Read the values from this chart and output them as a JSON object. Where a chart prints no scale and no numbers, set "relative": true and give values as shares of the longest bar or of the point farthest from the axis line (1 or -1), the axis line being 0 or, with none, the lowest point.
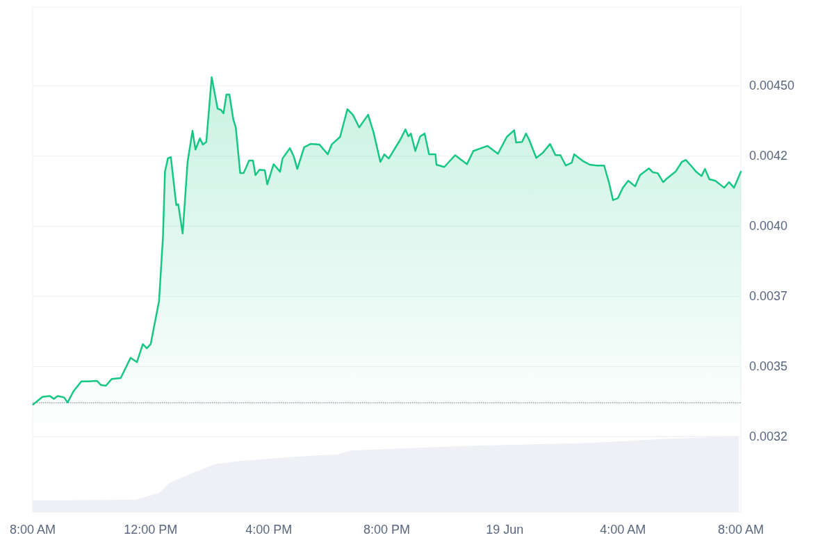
{
  "chart_data": [
    {
      "type": "area",
      "xlim": [
        "--06-18T08:00",
        "--06-19T08:00"
      ],
      "ylim": [
        0.00325,
        0.00478
      ],
      "tick_labels": "y",
      "grid": "y",
      "yticks": [
        {
          "value": 0.00325,
          "label": "0.0032"
        },
        {
          "value": 0.0035,
          "label": "0.0035"
        },
        {
          "value": 0.00375,
          "label": "0.0037"
        },
        {
          "value": 0.004,
          "label": "0.0040"
        },
        {
          "value": 0.00425,
          "label": "0.0042"
        },
        {
          "value": 0.0045,
          "label": "0.00450"
        }
      ],
      "ref_lines": [
        {
          "axis": "y",
          "value": 0.00337,
          "label": null,
          "color": "#9aa0a8",
          "line_style": "dotted"
        }
      ],
      "series": [
        {
          "color": "#16c784",
          "x": [
            "--06-18T08:01",
            "--06-18T08:20",
            "--06-18T08:35",
            "--06-18T08:43",
            "--06-18T08:51",
            "--06-18T09:04",
            "--06-18T09:11",
            "--06-18T09:23",
            "--06-18T09:39",
            "--06-18T09:53",
            "--06-18T10:11",
            "--06-18T10:19",
            "--06-18T10:29",
            "--06-18T10:41",
            "--06-18T10:59",
            "--06-18T11:19",
            "--06-18T11:32",
            "--06-18T11:44",
            "--06-18T11:52",
            "--06-18T12:00",
            "--06-18T12:17",
            "--06-18T12:25",
            "--06-18T12:29",
            "--06-18T12:35",
            "--06-18T12:41",
            "--06-18T12:52",
            "--06-18T12:56",
            "--06-18T13:05",
            "--06-18T13:15",
            "--06-18T13:25",
            "--06-18T13:31",
            "--06-18T13:40",
            "--06-18T13:46",
            "--06-18T13:53",
            "--06-18T14:04",
            "--06-18T14:16",
            "--06-18T14:23",
            "--06-18T14:28",
            "--06-18T14:34",
            "--06-18T14:40",
            "--06-18T14:48",
            "--06-18T14:53",
            "--06-18T15:02",
            "--06-18T15:09",
            "--06-18T15:20",
            "--06-18T15:28",
            "--06-18T15:33",
            "--06-18T15:41",
            "--06-18T15:52",
            "--06-18T15:57",
            "--06-18T16:10",
            "--06-18T16:23",
            "--06-18T16:28",
            "--06-18T16:43",
            "--06-18T16:51",
            "--06-18T16:58",
            "--06-18T17:12",
            "--06-18T17:25",
            "--06-18T17:43",
            "--06-18T18:00",
            "--06-18T18:08",
            "--06-18T18:25",
            "--06-18T18:40",
            "--06-18T18:51",
            "--06-18T19:04",
            "--06-18T19:22",
            "--06-18T19:33",
            "--06-18T19:47",
            "--06-18T19:55",
            "--06-18T20:04",
            "--06-18T20:28",
            "--06-18T20:38",
            "--06-18T20:44",
            "--06-18T20:49",
            "--06-18T20:58",
            "--06-18T21:08",
            "--06-18T21:17",
            "--06-18T21:26",
            "--06-18T21:39",
            "--06-18T21:41",
            "--06-18T21:57",
            "--06-18T22:19",
            "--06-18T22:43",
            "--06-18T22:56",
            "--06-18T23:25",
            "--06-18T23:46",
            "--06-19T00:04",
            "--06-19T00:19",
            "--06-19T00:23",
            "--06-19T00:35",
            "--06-19T00:43",
            "--06-19T00:49",
            "--06-19T01:04",
            "--06-19T01:17",
            "--06-19T01:32",
            "--06-19T01:43",
            "--06-19T01:53",
            "--06-19T02:04",
            "--06-19T02:16",
            "--06-19T02:21",
            "--06-19T02:40",
            "--06-19T02:53",
            "--06-19T03:08",
            "--06-19T03:22",
            "--06-19T03:32",
            "--06-19T03:40",
            "--06-19T03:50",
            "--06-19T04:00",
            "--06-19T04:11",
            "--06-19T04:25",
            "--06-19T04:35",
            "--06-19T04:53",
            "--06-19T05:01",
            "--06-19T05:11",
            "--06-19T05:22",
            "--06-19T05:29",
            "--06-19T05:47",
            "--06-19T06:00",
            "--06-19T06:08",
            "--06-19T06:21",
            "--06-19T06:29",
            "--06-19T06:40",
            "--06-19T06:47",
            "--06-19T06:56",
            "--06-19T07:08",
            "--06-19T07:26",
            "--06-19T07:36",
            "--06-19T07:46",
            "--06-19T08:00"
          ],
          "values": [
            0.003364,
            0.003391,
            0.003394,
            0.003384,
            0.003394,
            0.003389,
            0.003371,
            0.003411,
            0.003446,
            0.003446,
            0.003448,
            0.003433,
            0.003431,
            0.003455,
            0.003458,
            0.00353,
            0.003515,
            0.003579,
            0.003564,
            0.003579,
            0.003733,
            0.003963,
            0.004193,
            0.004241,
            0.004245,
            0.004074,
            0.004077,
            0.003973,
            0.004228,
            0.004339,
            0.004272,
            0.004312,
            0.00429,
            0.004299,
            0.00453,
            0.004418,
            0.004413,
            0.004401,
            0.004468,
            0.004468,
            0.004379,
            0.004351,
            0.004188,
            0.004188,
            0.004233,
            0.004233,
            0.004181,
            0.0042,
            0.004198,
            0.004148,
            0.00422,
            0.004193,
            0.00424,
            0.004277,
            0.004247,
            0.004203,
            0.00428,
            0.004292,
            0.00429,
            0.004255,
            0.00429,
            0.004317,
            0.004416,
            0.004396,
            0.004351,
            0.004396,
            0.004334,
            0.004228,
            0.004255,
            0.00424,
            0.004309,
            0.004344,
            0.004319,
            0.004329,
            0.004267,
            0.004319,
            0.004329,
            0.004255,
            0.004255,
            0.004218,
            0.00421,
            0.004252,
            0.00422,
            0.004267,
            0.004285,
            0.004257,
            0.004317,
            0.004341,
            0.004297,
            0.004299,
            0.004329,
            0.004309,
            0.004242,
            0.00426,
            0.004292,
            0.004252,
            0.004252,
            0.004215,
            0.004225,
            0.004255,
            0.00423,
            0.004218,
            0.004215,
            0.004215,
            0.004153,
            0.004092,
            0.004099,
            0.004136,
            0.004161,
            0.004141,
            0.004181,
            0.004205,
            0.004191,
            0.004188,
            0.004156,
            0.004168,
            0.004193,
            0.004228,
            0.004235,
            0.00421,
            0.004193,
            0.004178,
            0.004203,
            0.004166,
            0.004161,
            0.004136,
            0.004156,
            0.004136,
            0.004193
          ]
        }
      ]
    },
    {
      "type": "area",
      "relative": true,
      "xlim": [
        "--06-18T08:00",
        "--06-19T08:00"
      ],
      "tick_labels": "x",
      "xticks": [
        {
          "value": "--06-18T08:00",
          "label": "8:00 AM"
        },
        {
          "value": "--06-18T12:00",
          "label": "12:00 PM"
        },
        {
          "value": "--06-18T16:00",
          "label": "4:00 PM"
        },
        {
          "value": "--06-18T20:00",
          "label": "8:00 PM"
        },
        {
          "value": "--06-19T00:00",
          "label": "19 Jun"
        },
        {
          "value": "--06-19T04:00",
          "label": "4:00 AM"
        },
        {
          "value": "--06-19T08:00",
          "label": "8:00 AM"
        }
      ],
      "series": [
        {
          "color": "#eef0f5",
          "x": [
            "--06-18T08:00",
            "--06-18T11:29",
            "--06-18T12:17",
            "--06-18T12:37",
            "--06-18T13:24",
            "--06-18T14:11",
            "--06-18T14:59",
            "--06-18T16:35",
            "--06-18T18:20",
            "--06-18T18:48",
            "--06-18T22:37",
            "--06-19T02:55",
            "--06-19T05:17",
            "--06-19T07:56"
          ],
          "values": [
            0.15,
            0.16,
            0.25,
            0.38,
            0.51,
            0.63,
            0.67,
            0.72,
            0.76,
            0.81,
            0.87,
            0.91,
            0.96,
            1.0
          ]
        }
      ]
    }
  ]
}
